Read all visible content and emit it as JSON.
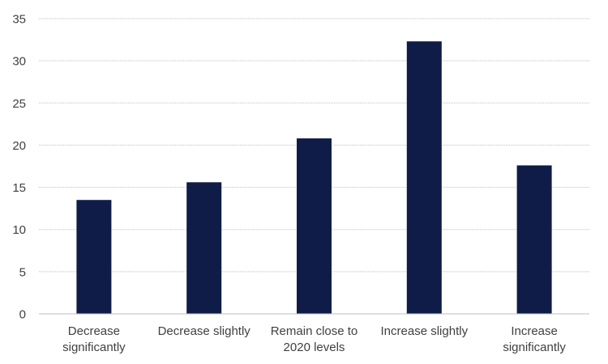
{
  "chart_data": {
    "type": "bar",
    "categories": [
      [
        "Decrease",
        "significantly"
      ],
      [
        "Decrease slightly"
      ],
      [
        "Remain close to",
        "2020 levels"
      ],
      [
        "Increase slightly"
      ],
      [
        "Increase",
        "significantly"
      ]
    ],
    "values": [
      13.5,
      15.6,
      20.8,
      32.3,
      17.6
    ],
    "ylim": [
      0,
      35
    ],
    "yticks": [
      "0",
      "5",
      "10",
      "15",
      "20",
      "25",
      "30",
      "35"
    ],
    "title": "",
    "xlabel": "",
    "ylabel": "",
    "grid": true,
    "legend": "none",
    "colors": {
      "bar": "#0F1C47",
      "grid": "#BFBFBF",
      "axis": "#BFBFBF",
      "text": "#404040"
    }
  }
}
